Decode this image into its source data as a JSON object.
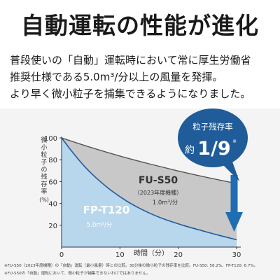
{
  "headline": "自動運転の性能が進化",
  "description": [
    "普段使いの「自動」運転時において常に厚生労働省",
    "推奨仕様である5.0m³/分以上の風量を発揮。",
    "より早く微小粒子を捕集できるようになりました。"
  ],
  "callout": {
    "title": "粒子残存率",
    "prefix": "約",
    "value": "1/9",
    "mark": "※"
  },
  "footnotes": [
    "※FU-S50（2023年度機種）の「自動」運転（最小風量）時との比較。30分後の微小粒子の残存率を比較。FU-S50: 58.2%、FP-T120: 6.7%。",
    "※FU-S50の「自動」運転において、微小粒子が捕集できないわけではありません。"
  ],
  "colors": {
    "fu_s50_line": "#555555",
    "fu_s50_fill": "#c8c8c8",
    "fp_t120_line": "#1f5c99",
    "fp_t120_fill": "#b8d6ec",
    "callout_bg": "#1f5c99",
    "arrow": "#1f6db3"
  },
  "chart_data": {
    "type": "area",
    "ylabel": "微小粒子の残存率",
    "yunit": "(%)",
    "xlabel": "時間（分）",
    "xlim": [
      0,
      30
    ],
    "ylim": [
      0,
      100
    ],
    "xticks": [
      0,
      10,
      20,
      30
    ],
    "yticks": [
      20,
      40,
      60,
      80,
      100
    ],
    "x_tick_labels": [
      "0",
      "10",
      "20",
      "30"
    ],
    "y_tick_labels": [
      "20",
      "40",
      "60",
      "80",
      "100"
    ],
    "grid": false,
    "series": [
      {
        "name": "FU-S50",
        "note": "（2023年度機種）",
        "airflow": "1.0m³/分",
        "x": [
          0,
          5,
          10,
          15,
          20,
          25,
          30
        ],
        "values": [
          100,
          91.3,
          83.4,
          76.3,
          69.7,
          63.7,
          58.2
        ]
      },
      {
        "name": "FP-T120",
        "airflow": "5.0m³/分",
        "x": [
          0,
          2,
          4,
          6,
          8,
          10,
          12,
          15,
          18,
          21,
          24,
          27,
          30
        ],
        "values": [
          100,
          86,
          73.5,
          63,
          53.9,
          46.2,
          39.5,
          31.3,
          24.8,
          19.7,
          15.1,
          10.8,
          6.7
        ]
      }
    ]
  }
}
